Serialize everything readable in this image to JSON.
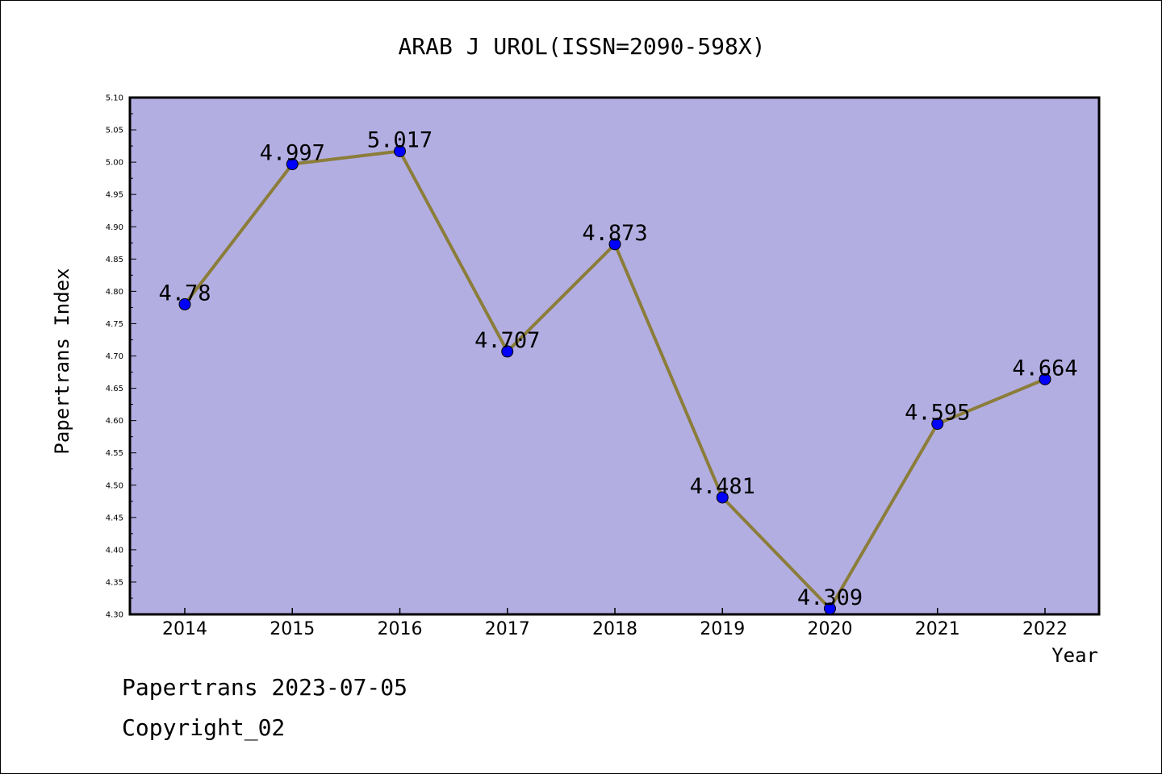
{
  "chart_data": {
    "type": "line",
    "title": "ARAB J UROL(ISSN=2090-598X)",
    "xlabel": "Year",
    "ylabel": "Papertrans Index",
    "categories": [
      "2014",
      "2015",
      "2016",
      "2017",
      "2018",
      "2019",
      "2020",
      "2021",
      "2022"
    ],
    "values": [
      4.78,
      4.997,
      5.017,
      4.707,
      4.873,
      4.481,
      4.309,
      4.595,
      4.664
    ],
    "data_labels": [
      "4.78",
      "4.997",
      "5.017",
      "4.707",
      "4.873",
      "4.481",
      "4.309",
      "4.595",
      "4.664"
    ],
    "ylim": [
      4.3,
      5.1
    ],
    "yticks": [
      "4.30",
      "4.35",
      "4.40",
      "4.45",
      "4.50",
      "4.55",
      "4.60",
      "4.65",
      "4.70",
      "4.75",
      "4.80",
      "4.85",
      "4.90",
      "4.95",
      "5.00",
      "5.05",
      "5.10"
    ],
    "grid": false,
    "colors": {
      "plot_background": "#b3aee2",
      "line": "#8b7d3a",
      "marker": "#0000ff"
    }
  },
  "footer": {
    "line1": "Papertrans 2023-07-05",
    "line2": "Copyright_02"
  }
}
